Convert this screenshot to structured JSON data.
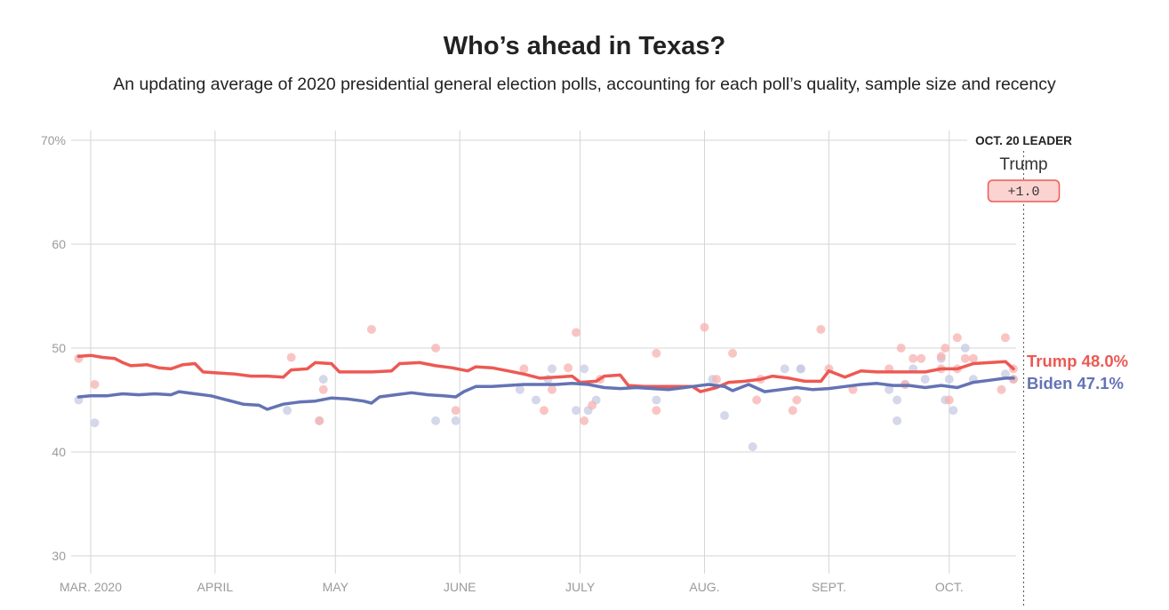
{
  "title": "Who’s ahead in Texas?",
  "subtitle": "An updating average of 2020 presidential general election polls, accounting for each poll’s quality, sample size and recency",
  "leader": {
    "heading": "OCT. 20 LEADER",
    "name": "Trump",
    "margin": "+1.0"
  },
  "colors": {
    "trump": "#ed5953",
    "biden": "#6473b4",
    "trump_dot": "#f7b2b0",
    "biden_dot": "#c5cbe3",
    "grid": "#d5d5d5",
    "badge_bg": "#fbd4d2"
  },
  "chart_data": {
    "type": "line",
    "title": "Who’s ahead in Texas?",
    "xlabel": "",
    "ylabel": "",
    "ylim": [
      30,
      70
    ],
    "xlim_day": [
      -2,
      230
    ],
    "y_ticks": [
      {
        "value": 70,
        "label": "70%"
      },
      {
        "value": 60,
        "label": "60"
      },
      {
        "value": 50,
        "label": "50"
      },
      {
        "value": 40,
        "label": "40"
      },
      {
        "value": 30,
        "label": "30"
      }
    ],
    "x_ticks": [
      {
        "day": 0,
        "label": "MAR. 2020"
      },
      {
        "day": 31,
        "label": "APRIL"
      },
      {
        "day": 61,
        "label": "MAY"
      },
      {
        "day": 92,
        "label": "JUNE"
      },
      {
        "day": 122,
        "label": "JULY"
      },
      {
        "day": 153,
        "label": "AUG."
      },
      {
        "day": 184,
        "label": "SEPT."
      },
      {
        "day": 214,
        "label": "OCT."
      }
    ],
    "x_unit": "days since Mar. 1, 2020",
    "leader_day": 233,
    "series": [
      {
        "name": "Trump",
        "end_label": "Trump 48.0%",
        "final_value": 48.0,
        "points": [
          [
            -3,
            49.2
          ],
          [
            0,
            49.3
          ],
          [
            3,
            49.1
          ],
          [
            6,
            49.0
          ],
          [
            8,
            48.6
          ],
          [
            10,
            48.3
          ],
          [
            14,
            48.4
          ],
          [
            17,
            48.1
          ],
          [
            20,
            48.0
          ],
          [
            23,
            48.4
          ],
          [
            26,
            48.5
          ],
          [
            28,
            47.7
          ],
          [
            32,
            47.6
          ],
          [
            36,
            47.5
          ],
          [
            40,
            47.3
          ],
          [
            44,
            47.3
          ],
          [
            48,
            47.2
          ],
          [
            50,
            47.9
          ],
          [
            54,
            48.0
          ],
          [
            56,
            48.6
          ],
          [
            60,
            48.5
          ],
          [
            62,
            47.7
          ],
          [
            66,
            47.7
          ],
          [
            70,
            47.7
          ],
          [
            75,
            47.8
          ],
          [
            77,
            48.5
          ],
          [
            82,
            48.6
          ],
          [
            86,
            48.3
          ],
          [
            90,
            48.1
          ],
          [
            94,
            47.8
          ],
          [
            96,
            48.2
          ],
          [
            100,
            48.1
          ],
          [
            104,
            47.8
          ],
          [
            108,
            47.5
          ],
          [
            112,
            47.1
          ],
          [
            116,
            47.2
          ],
          [
            120,
            47.3
          ],
          [
            122,
            46.7
          ],
          [
            126,
            46.8
          ],
          [
            128,
            47.3
          ],
          [
            132,
            47.4
          ],
          [
            134,
            46.4
          ],
          [
            138,
            46.3
          ],
          [
            142,
            46.3
          ],
          [
            146,
            46.3
          ],
          [
            150,
            46.3
          ],
          [
            152,
            45.8
          ],
          [
            156,
            46.2
          ],
          [
            159,
            46.7
          ],
          [
            163,
            46.8
          ],
          [
            167,
            47.0
          ],
          [
            170,
            47.3
          ],
          [
            174,
            47.1
          ],
          [
            178,
            46.8
          ],
          [
            182,
            46.8
          ],
          [
            184,
            47.8
          ],
          [
            188,
            47.2
          ],
          [
            192,
            47.8
          ],
          [
            196,
            47.7
          ],
          [
            200,
            47.7
          ],
          [
            204,
            47.7
          ],
          [
            208,
            47.7
          ],
          [
            212,
            48.0
          ],
          [
            216,
            48.0
          ],
          [
            220,
            48.5
          ],
          [
            224,
            48.6
          ],
          [
            228,
            48.7
          ],
          [
            230,
            48.0
          ]
        ]
      },
      {
        "name": "Biden",
        "end_label": "Biden 47.1%",
        "final_value": 47.1,
        "points": [
          [
            -3,
            45.3
          ],
          [
            0,
            45.4
          ],
          [
            4,
            45.4
          ],
          [
            8,
            45.6
          ],
          [
            12,
            45.5
          ],
          [
            16,
            45.6
          ],
          [
            20,
            45.5
          ],
          [
            22,
            45.8
          ],
          [
            26,
            45.6
          ],
          [
            30,
            45.4
          ],
          [
            34,
            45.0
          ],
          [
            38,
            44.6
          ],
          [
            42,
            44.5
          ],
          [
            44,
            44.1
          ],
          [
            48,
            44.6
          ],
          [
            52,
            44.8
          ],
          [
            56,
            44.9
          ],
          [
            60,
            45.2
          ],
          [
            64,
            45.1
          ],
          [
            68,
            44.9
          ],
          [
            70,
            44.7
          ],
          [
            72,
            45.3
          ],
          [
            76,
            45.5
          ],
          [
            80,
            45.7
          ],
          [
            84,
            45.5
          ],
          [
            88,
            45.4
          ],
          [
            91,
            45.3
          ],
          [
            93,
            45.8
          ],
          [
            96,
            46.3
          ],
          [
            100,
            46.3
          ],
          [
            104,
            46.4
          ],
          [
            108,
            46.5
          ],
          [
            112,
            46.5
          ],
          [
            116,
            46.5
          ],
          [
            120,
            46.6
          ],
          [
            124,
            46.5
          ],
          [
            128,
            46.2
          ],
          [
            132,
            46.1
          ],
          [
            136,
            46.2
          ],
          [
            140,
            46.1
          ],
          [
            144,
            46.0
          ],
          [
            148,
            46.2
          ],
          [
            150,
            46.3
          ],
          [
            154,
            46.5
          ],
          [
            158,
            46.3
          ],
          [
            160,
            45.9
          ],
          [
            164,
            46.5
          ],
          [
            168,
            45.8
          ],
          [
            172,
            46.0
          ],
          [
            176,
            46.2
          ],
          [
            180,
            46.0
          ],
          [
            184,
            46.1
          ],
          [
            188,
            46.3
          ],
          [
            192,
            46.5
          ],
          [
            196,
            46.6
          ],
          [
            200,
            46.4
          ],
          [
            204,
            46.4
          ],
          [
            208,
            46.2
          ],
          [
            212,
            46.4
          ],
          [
            216,
            46.2
          ],
          [
            220,
            46.7
          ],
          [
            224,
            46.9
          ],
          [
            228,
            47.1
          ],
          [
            230,
            47.1
          ]
        ]
      }
    ],
    "polls": {
      "Trump": [
        [
          -3,
          49.0
        ],
        [
          1,
          46.5
        ],
        [
          50,
          49.1
        ],
        [
          58,
          46.0
        ],
        [
          57,
          43.0
        ],
        [
          70,
          51.8
        ],
        [
          86,
          50.0
        ],
        [
          91,
          44.0
        ],
        [
          108,
          48.0
        ],
        [
          113,
          44.0
        ],
        [
          115,
          46.0
        ],
        [
          119,
          48.1
        ],
        [
          121,
          51.5
        ],
        [
          123,
          43.0
        ],
        [
          125,
          44.5
        ],
        [
          127,
          47.0
        ],
        [
          141,
          44.0
        ],
        [
          141,
          49.5
        ],
        [
          153,
          52.0
        ],
        [
          156,
          47.0
        ],
        [
          160,
          49.5
        ],
        [
          166,
          45.0
        ],
        [
          167,
          47.0
        ],
        [
          175,
          44.0
        ],
        [
          176,
          45.0
        ],
        [
          182,
          51.8
        ],
        [
          184,
          48.0
        ],
        [
          190,
          46.0
        ],
        [
          199,
          48.0
        ],
        [
          202,
          50.0
        ],
        [
          203,
          46.5
        ],
        [
          205,
          49.0
        ],
        [
          207,
          49.0
        ],
        [
          212,
          49.2
        ],
        [
          212,
          48.0
        ],
        [
          213,
          50.0
        ],
        [
          214,
          45.0
        ],
        [
          216,
          51.0
        ],
        [
          216,
          48.0
        ],
        [
          218,
          49.0
        ],
        [
          220,
          49.0
        ],
        [
          228,
          51.0
        ],
        [
          227,
          46.0
        ],
        [
          230,
          48.0
        ],
        [
          230,
          47.0
        ]
      ],
      "Biden": [
        [
          -3,
          45.0
        ],
        [
          1,
          42.8
        ],
        [
          49,
          44.0
        ],
        [
          58,
          47.0
        ],
        [
          57,
          43.0
        ],
        [
          86,
          43.0
        ],
        [
          91,
          43.0
        ],
        [
          107,
          46.0
        ],
        [
          111,
          45.0
        ],
        [
          114,
          47.0
        ],
        [
          115,
          48.0
        ],
        [
          121,
          44.0
        ],
        [
          123,
          48.0
        ],
        [
          124,
          44.0
        ],
        [
          126,
          45.0
        ],
        [
          141,
          45.0
        ],
        [
          155,
          47.0
        ],
        [
          158,
          43.5
        ],
        [
          165,
          40.5
        ],
        [
          173,
          48.0
        ],
        [
          177,
          48.0
        ],
        [
          177,
          48.0
        ],
        [
          199,
          46.0
        ],
        [
          201,
          45.0
        ],
        [
          201,
          43.0
        ],
        [
          203,
          46.5
        ],
        [
          205,
          48.0
        ],
        [
          208,
          47.0
        ],
        [
          212,
          49.0
        ],
        [
          213,
          45.0
        ],
        [
          214,
          47.0
        ],
        [
          215,
          44.0
        ],
        [
          218,
          50.0
        ],
        [
          220,
          47.0
        ],
        [
          228,
          47.5
        ],
        [
          230,
          47.0
        ]
      ]
    }
  }
}
